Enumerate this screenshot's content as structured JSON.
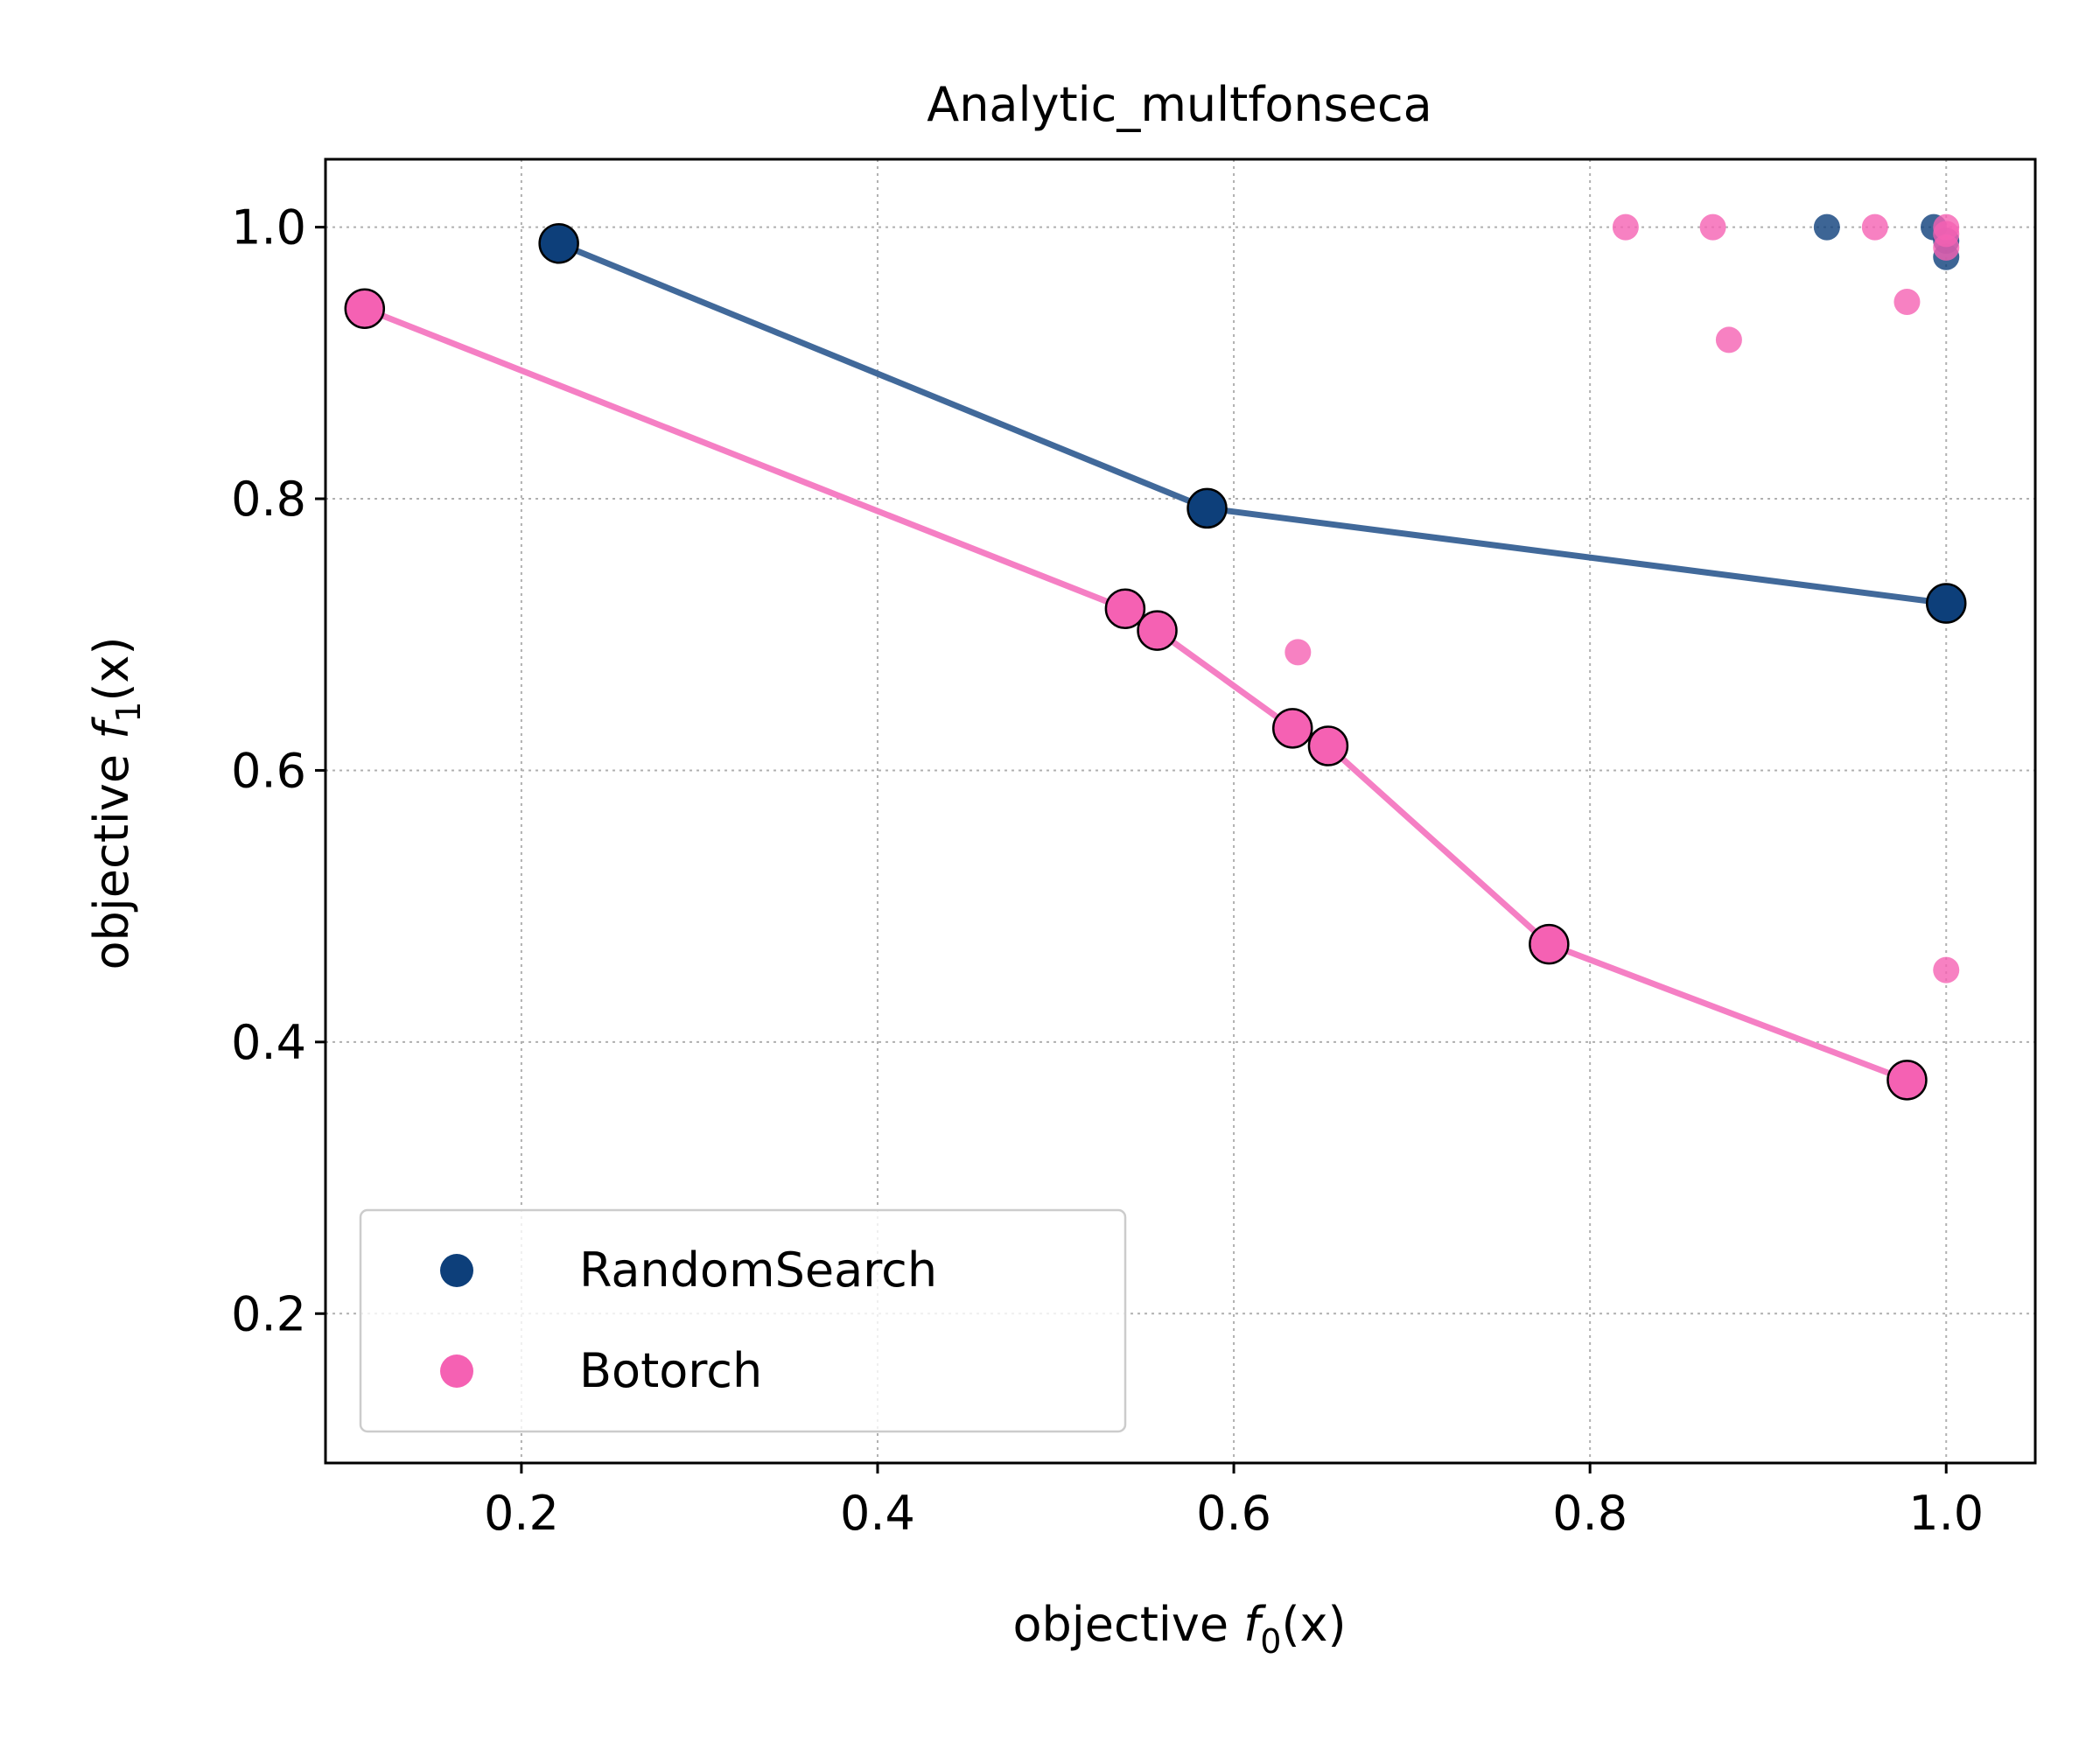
{
  "chart_data": {
    "type": "scatter",
    "title": "Analytic_multfonseca",
    "xlabel": {
      "prefix": "objective ",
      "func": "f",
      "sub": "0",
      "arg": "(x)"
    },
    "ylabel": {
      "prefix": "objective ",
      "func": "f",
      "sub": "1",
      "arg": "(x)"
    },
    "xlim": [
      0.09,
      1.05
    ],
    "ylim": [
      0.09,
      1.05
    ],
    "xticks": [
      0.2,
      0.4,
      0.6,
      0.8,
      1.0
    ],
    "yticks": [
      0.2,
      0.4,
      0.6,
      0.8,
      1.0
    ],
    "xtick_labels": [
      "0.2",
      "0.4",
      "0.6",
      "0.8",
      "1.0"
    ],
    "ytick_labels": [
      "0.2",
      "0.4",
      "0.6",
      "0.8",
      "1.0"
    ],
    "grid": true,
    "legend_position": "lower-left",
    "series": [
      {
        "name": "RandomSearch",
        "color": "#0d3f7a",
        "line_color": "#41699a",
        "pareto_front": [
          [
            0.221,
            0.988
          ],
          [
            0.585,
            0.793
          ],
          [
            1.0,
            0.723
          ]
        ],
        "points": [
          [
            0.933,
            1.0
          ],
          [
            0.993,
            1.0
          ],
          [
            1.0,
            0.978
          ],
          [
            1.0,
            0.99
          ]
        ]
      },
      {
        "name": "Botorch",
        "color": "#f561b3",
        "line_color": "#f57fc4",
        "pareto_front": [
          [
            0.112,
            0.94
          ],
          [
            0.539,
            0.719
          ],
          [
            0.557,
            0.703
          ],
          [
            0.633,
            0.631
          ],
          [
            0.653,
            0.618
          ],
          [
            0.777,
            0.472
          ],
          [
            0.978,
            0.372
          ]
        ],
        "points": [
          [
            0.82,
            1.0
          ],
          [
            0.869,
            1.0
          ],
          [
            0.96,
            1.0
          ],
          [
            1.0,
            1.0
          ],
          [
            1.0,
            0.995
          ],
          [
            1.0,
            0.985
          ],
          [
            0.878,
            0.917
          ],
          [
            0.978,
            0.945
          ],
          [
            0.636,
            0.687
          ],
          [
            1.0,
            0.453
          ]
        ]
      }
    ]
  }
}
